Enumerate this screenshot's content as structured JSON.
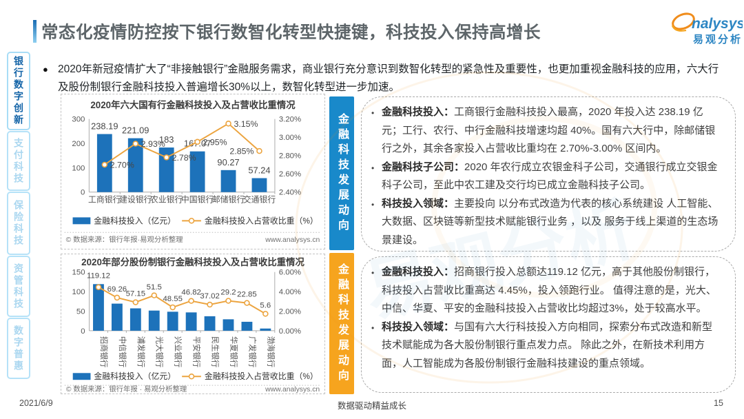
{
  "page": {
    "title": "常态化疫情防控按下银行数智化转型快捷键，科技投入保持高增长",
    "logo": {
      "brand": "nalysys",
      "brand_cn": "易观分析"
    },
    "intro_bullet": "2020年新冠疫情扩大了“非接触银行”金融服务需求，商业银行充分意识到数智化转型的紧急性及重要性，也更加重视金融科技的应用，六大行及股份制银行金融科技投入普遍增长30%以上，数智化转型进一步加速。",
    "footer": {
      "date": "2021/6/9",
      "slogan": "数据驱动精益成长",
      "page_number": "15"
    }
  },
  "sidebar": {
    "items": [
      {
        "label": "银行数字创新",
        "active": true
      },
      {
        "label": "支付科技",
        "active": false
      },
      {
        "label": "保险科技",
        "active": false
      },
      {
        "label": "资管科技",
        "active": false
      },
      {
        "label": "数字普惠",
        "active": false
      }
    ]
  },
  "ribbons": [
    {
      "label": "金融科技发展动向",
      "color": "#1989ca"
    },
    {
      "label": "金融科技发展动向",
      "color": "#f6a41e"
    }
  ],
  "panels": [
    {
      "bullets": [
        {
          "lead": "金融科技投入：",
          "text": "工商银行金融科技投入最高，2020 年投入达 238.19 亿元；工行、农行、中行金融科技增速均超 40%。国有六大行中，除邮储银行之外，其余各家投入占营收比重均在 2.70%-3.00% 区间内。"
        },
        {
          "lead": "金融科技子公司：",
          "text": "2020 年农行成立农银金科子公司，交通银行成立交银金科子公司，至此中农工建及交行均已成立金融科技子公司。"
        },
        {
          "lead": "科技投入领域：",
          "text": "主要投向 以分布式改造为代表的核心系统建设 人工智能、大数据、区块链等新型技术赋能银行业务 ，以及 服务于线上渠道的生态场景建设。"
        }
      ]
    },
    {
      "bullets": [
        {
          "lead": "金融科技投入：",
          "text": "招商银行投入总额达119.12 亿元，高于其他股份制银行，科技投入占营收比重高达 4.45%，投入领跑行业。 值得注意的是，光大、中信、华夏、平安的金融科技投入占营收比均超过3%，处于较高水平。"
        },
        {
          "lead": "科技投入领域：",
          "text": "与国有六大行科技投入方向相同，探索分布式改造和新型技术赋能成为各大股份制银行重点发力点。 除此之外，在新技术利用方面，人工智能成为各股份制银行金融科技建设的重点领域。"
        }
      ]
    }
  ],
  "chart_data": [
    {
      "type": "bar+line",
      "title": "2020年六大国有行金融科技投入及占营收比重情况",
      "categories": [
        "工商银行",
        "建设银行",
        "农业银行",
        "中国银行",
        "邮储银行",
        "交通银行"
      ],
      "series": [
        {
          "name": "金融科技投入（亿元）",
          "type": "bar",
          "color": "#1d72ba",
          "values": [
            238.19,
            221.09,
            183,
            167.07,
            90.27,
            57.24
          ],
          "labels": [
            "238.19",
            "221.09",
            "183",
            "167.07",
            "90.27",
            "57.24"
          ]
        },
        {
          "name": "金融科技投入占营收比重（%）",
          "type": "line",
          "color": "#eca43f",
          "values": [
            2.7,
            2.93,
            2.78,
            2.95,
            3.15,
            2.85
          ],
          "labels": [
            "2.70%",
            "2.93%",
            "2.78%",
            "2.95%",
            "3.15%",
            "2.85%"
          ]
        }
      ],
      "left_axis": {
        "min": 0,
        "max": 300,
        "ticks": [
          300,
          200,
          100,
          0
        ]
      },
      "right_axis": {
        "min": 2.4,
        "max": 3.2,
        "ticks": [
          "3.20%",
          "3.00%",
          "2.80%",
          "2.60%",
          "2.40%"
        ],
        "tick_values": [
          3.2,
          3.0,
          2.8,
          2.6,
          2.4
        ]
      },
      "grid": false,
      "legend_position": "bottom",
      "source_left": "© 数据来源：银行年报·易观分析整理",
      "source_right": "www.analysys.cn"
    },
    {
      "type": "bar+line",
      "title": "2020年部分股份制银行金融科技投入及占营收比重情况",
      "categories": [
        "招商银行",
        "中信银行",
        "浦发银行",
        "光大银行",
        "兴业银行",
        "平安银行",
        "民生银行",
        "华夏银行",
        "广发银行",
        "渤海银行"
      ],
      "series": [
        {
          "name": "金融科技投入（亿元）",
          "type": "bar",
          "color": "#1d72ba",
          "values": [
            119.12,
            69.26,
            57.15,
            51.5,
            48.55,
            46.82,
            37.02,
            29.2,
            22.85,
            5.6
          ],
          "labels": [
            "119.12",
            "69.26",
            "57.15",
            "51.5",
            "48.55",
            "46.82",
            "37.02",
            "29.2",
            "22.85",
            "5.6"
          ]
        },
        {
          "name": "金融科技投入占营收比重（%）",
          "type": "line",
          "color": "#eca43f",
          "values": [
            4.45,
            3.38,
            2.91,
            3.61,
            2.39,
            3.05,
            2.67,
            3.06,
            2.84,
            1.73
          ]
        }
      ],
      "left_axis": {
        "min": 0,
        "max": 150,
        "ticks": [
          150,
          100,
          50,
          0
        ]
      },
      "right_axis": {
        "min": 0,
        "max": 6,
        "ticks": [
          "6.00%",
          "4.00%",
          "2.00%",
          "0.00%"
        ],
        "tick_values": [
          6,
          4,
          2,
          0
        ]
      },
      "grid": false,
      "legend_position": "bottom",
      "source_left": "© 数据来源：银行年报 · 易观分析整理",
      "source_right": "www.analysys.cn"
    }
  ]
}
